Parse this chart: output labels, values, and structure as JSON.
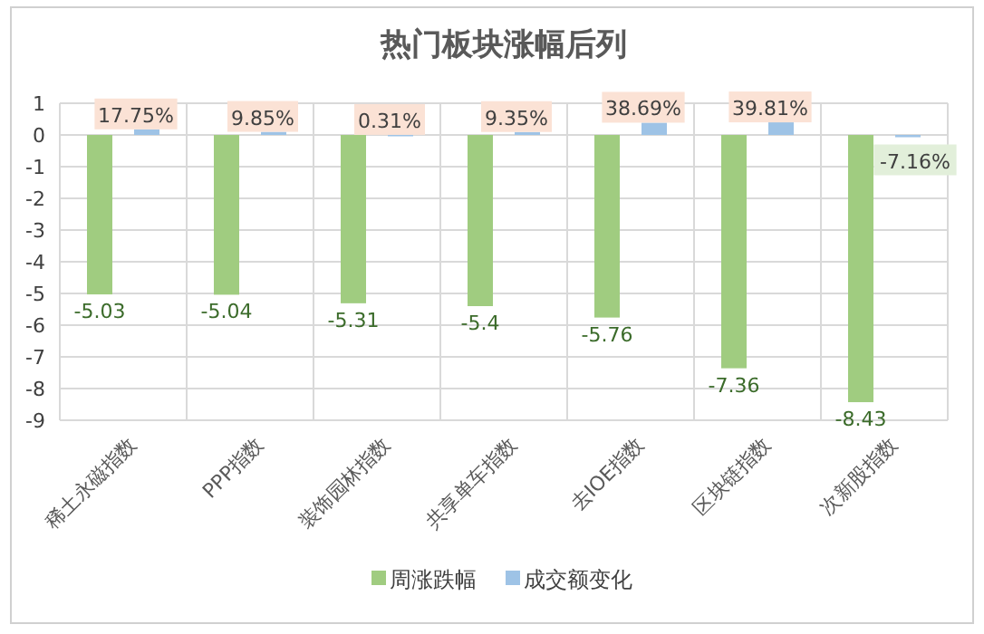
{
  "chart_data": {
    "type": "bar",
    "title": "热门板块涨幅后列",
    "categories": [
      "稀土永磁指数",
      "PPP指数",
      "装饰园林指数",
      "共享单车指数",
      "去IOE指数",
      "区块链指数",
      "次新股指数"
    ],
    "series": [
      {
        "name": "周涨跌幅",
        "color": "#a0cc80",
        "values": [
          -5.03,
          -5.04,
          -5.31,
          -5.4,
          -5.76,
          -7.36,
          -8.43
        ],
        "value_labels": [
          "-5.03",
          "-5.04",
          "-5.31",
          "-5.4",
          "-5.76",
          "-7.36",
          "-8.43"
        ]
      },
      {
        "name": "成交额变化",
        "color": "#9ec3e6",
        "values": [
          0.1775,
          0.0985,
          0.0031,
          0.0935,
          0.3869,
          0.3981,
          -0.0716
        ],
        "value_labels": [
          "17.75%",
          "9.85%",
          "0.31%",
          "9.35%",
          "38.69%",
          "39.81%",
          "-7.16%"
        ]
      }
    ],
    "ylim": [
      -9,
      1
    ],
    "yticks": [
      -9,
      -8,
      -7,
      -6,
      -5,
      -4,
      -3,
      -2,
      -1,
      0,
      1
    ],
    "grid": true,
    "legend": "bottom"
  }
}
